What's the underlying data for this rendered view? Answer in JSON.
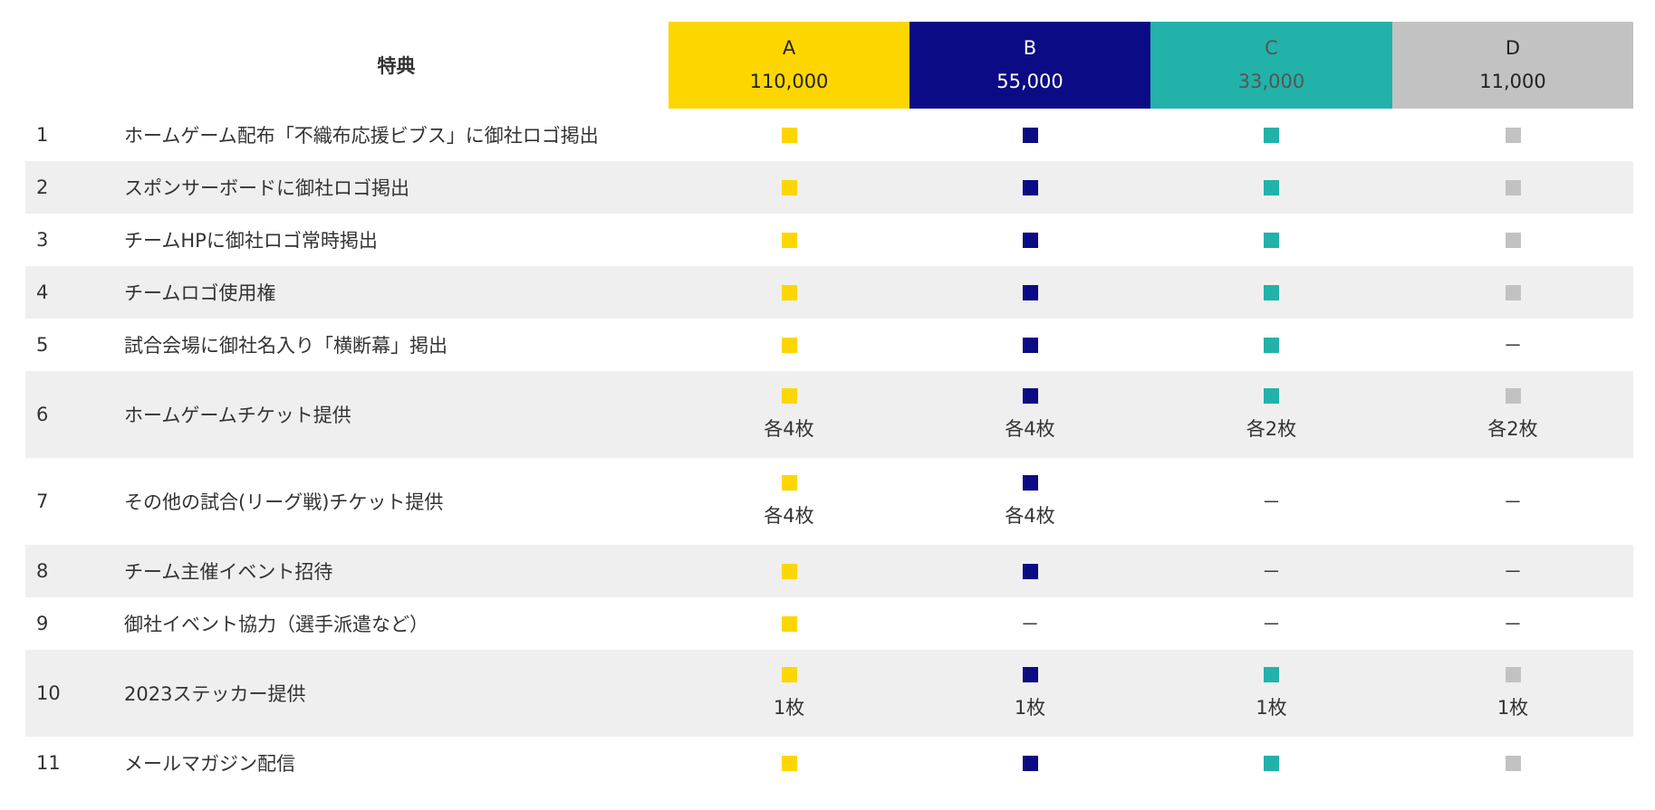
{
  "header": {
    "title": "特典",
    "plans": [
      {
        "name": "A",
        "price": "110,000",
        "color": "#fdd600"
      },
      {
        "name": "B",
        "price": "55,000",
        "color": "#0b0b85"
      },
      {
        "name": "C",
        "price": "33,000",
        "color": "#22b2aa"
      },
      {
        "name": "D",
        "price": "11,000",
        "color": "#c2c2c2"
      }
    ]
  },
  "rows": [
    {
      "number": "1",
      "label": "ホームゲーム配布「不織布応援ビブス」に御社ロゴ掲出",
      "cells": [
        {
          "mark": true
        },
        {
          "mark": true
        },
        {
          "mark": true
        },
        {
          "mark": true
        }
      ]
    },
    {
      "number": "2",
      "label": "スポンサーボードに御社ロゴ掲出",
      "cells": [
        {
          "mark": true
        },
        {
          "mark": true
        },
        {
          "mark": true
        },
        {
          "mark": true
        }
      ]
    },
    {
      "number": "3",
      "label": "チームHPに御社ロゴ常時掲出",
      "cells": [
        {
          "mark": true
        },
        {
          "mark": true
        },
        {
          "mark": true
        },
        {
          "mark": true
        }
      ]
    },
    {
      "number": "4",
      "label": "チームロゴ使用権",
      "cells": [
        {
          "mark": true
        },
        {
          "mark": true
        },
        {
          "mark": true
        },
        {
          "mark": true
        }
      ]
    },
    {
      "number": "5",
      "label": "試合会場に御社名入り「横断幕」掲出",
      "cells": [
        {
          "mark": true
        },
        {
          "mark": true
        },
        {
          "mark": true
        },
        {
          "text": "－"
        }
      ]
    },
    {
      "number": "6",
      "label": "ホームゲームチケット提供",
      "cells": [
        {
          "mark": true,
          "note": "各4枚"
        },
        {
          "mark": true,
          "note": "各4枚"
        },
        {
          "mark": true,
          "note": "各2枚"
        },
        {
          "mark": true,
          "note": "各2枚"
        }
      ]
    },
    {
      "number": "7",
      "label": "その他の試合(リーグ戦)チケット提供",
      "cells": [
        {
          "mark": true,
          "note": "各4枚"
        },
        {
          "mark": true,
          "note": "各4枚"
        },
        {
          "text": "－"
        },
        {
          "text": "－"
        }
      ]
    },
    {
      "number": "8",
      "label": "チーム主催イベント招待",
      "cells": [
        {
          "mark": true
        },
        {
          "mark": true
        },
        {
          "text": "－"
        },
        {
          "text": "－"
        }
      ]
    },
    {
      "number": "9",
      "label": "御社イベント協力（選手派遣など）",
      "cells": [
        {
          "mark": true
        },
        {
          "text": "－"
        },
        {
          "text": "－"
        },
        {
          "text": "－"
        }
      ]
    },
    {
      "number": "10",
      "label": "2023ステッカー提供",
      "cells": [
        {
          "mark": true,
          "note": "1枚"
        },
        {
          "mark": true,
          "note": "1枚"
        },
        {
          "mark": true,
          "note": "1枚"
        },
        {
          "mark": true,
          "note": "1枚"
        }
      ]
    },
    {
      "number": "11",
      "label": "メールマガジン配信",
      "cells": [
        {
          "mark": true
        },
        {
          "mark": true
        },
        {
          "mark": true
        },
        {
          "mark": true
        }
      ]
    }
  ]
}
